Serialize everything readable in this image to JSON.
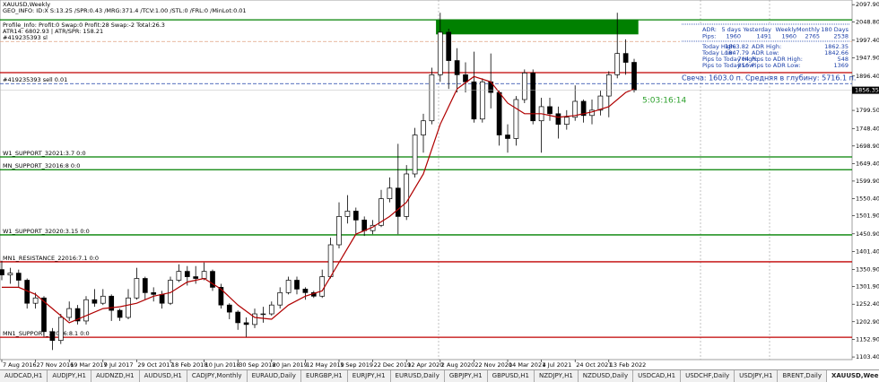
{
  "chart_data": {
    "type": "candlestick",
    "header": [
      "XAUUSD,Weekly",
      "GEO_INFO: ID:X S:13.25 /SPR:0.43 /MRG:371.4 /TCV:1.00 /STL:0 /FRL:0 /MinLot:0.01",
      "Profile_Info: Profit:0 Swap:0 Profit:28 Swap:-2 Total:26.3",
      "ATR14: 6802.93 | ATR/SPR: 158.21"
    ],
    "candle_color": "#000000",
    "x": [
      0,
      4,
      8,
      12,
      16,
      20,
      24,
      28,
      32,
      36,
      40,
      44,
      48,
      52,
      56,
      60,
      64,
      68,
      72,
      76,
      80,
      84,
      88,
      92,
      96,
      100,
      104,
      108,
      112,
      116,
      120,
      124,
      128,
      132,
      136,
      140,
      144,
      148,
      152,
      156,
      160,
      164,
      168,
      172,
      176,
      180,
      184,
      188,
      192,
      196,
      200,
      204,
      208,
      212,
      216,
      220,
      224,
      228,
      232,
      236,
      240,
      244,
      248,
      252,
      256,
      260,
      264,
      268,
      272,
      276,
      280,
      284,
      288,
      292,
      296,
      300
    ],
    "open": [
      1350,
      1335,
      1340,
      1320,
      1255,
      1270,
      1175,
      1150,
      1215,
      1240,
      1205,
      1265,
      1255,
      1275,
      1235,
      1215,
      1270,
      1325,
      1285,
      1280,
      1255,
      1320,
      1345,
      1330,
      1325,
      1345,
      1300,
      1250,
      1230,
      1200,
      1195,
      1225,
      1225,
      1250,
      1285,
      1320,
      1295,
      1285,
      1275,
      1330,
      1420,
      1500,
      1515,
      1490,
      1460,
      1475,
      1550,
      1580,
      1500,
      1620,
      1730,
      1770,
      1900,
      2020,
      1940,
      1900,
      1880,
      1775,
      1880,
      1850,
      1730,
      1720,
      1830,
      1905,
      1770,
      1810,
      1790,
      1760,
      1780,
      1825,
      1785,
      1800,
      1840,
      1900,
      1960,
      1935
    ],
    "high": [
      1375,
      1355,
      1350,
      1325,
      1285,
      1275,
      1185,
      1225,
      1260,
      1250,
      1275,
      1295,
      1295,
      1280,
      1240,
      1295,
      1355,
      1330,
      1300,
      1290,
      1330,
      1365,
      1360,
      1360,
      1370,
      1350,
      1310,
      1255,
      1235,
      1215,
      1240,
      1245,
      1260,
      1300,
      1330,
      1330,
      1300,
      1290,
      1350,
      1440,
      1540,
      1560,
      1525,
      1500,
      1490,
      1575,
      1610,
      1705,
      1645,
      1750,
      1790,
      1920,
      2075,
      2030,
      1975,
      1935,
      1965,
      1890,
      1960,
      1855,
      1760,
      1840,
      1915,
      1915,
      1835,
      1835,
      1810,
      1800,
      1870,
      1830,
      1830,
      1855,
      1910,
      2075,
      2000,
      1945
    ],
    "low": [
      1320,
      1310,
      1300,
      1240,
      1240,
      1160,
      1123,
      1140,
      1205,
      1195,
      1195,
      1245,
      1250,
      1205,
      1205,
      1210,
      1265,
      1265,
      1260,
      1240,
      1250,
      1315,
      1305,
      1310,
      1320,
      1290,
      1240,
      1210,
      1180,
      1160,
      1185,
      1200,
      1220,
      1240,
      1280,
      1280,
      1265,
      1270,
      1270,
      1325,
      1410,
      1480,
      1450,
      1445,
      1450,
      1470,
      1540,
      1450,
      1490,
      1610,
      1680,
      1760,
      1880,
      1860,
      1850,
      1850,
      1765,
      1765,
      1805,
      1700,
      1680,
      1700,
      1820,
      1760,
      1680,
      1770,
      1720,
      1745,
      1770,
      1765,
      1760,
      1785,
      1780,
      1890,
      1900,
      1850
    ],
    "close": [
      1335,
      1340,
      1320,
      1255,
      1270,
      1175,
      1150,
      1215,
      1240,
      1205,
      1265,
      1255,
      1275,
      1235,
      1215,
      1270,
      1325,
      1285,
      1280,
      1255,
      1320,
      1345,
      1330,
      1325,
      1345,
      1300,
      1250,
      1230,
      1200,
      1195,
      1225,
      1225,
      1250,
      1285,
      1320,
      1295,
      1285,
      1275,
      1330,
      1420,
      1500,
      1515,
      1490,
      1460,
      1475,
      1550,
      1580,
      1500,
      1620,
      1730,
      1770,
      1900,
      2020,
      1940,
      1900,
      1880,
      1775,
      1880,
      1850,
      1730,
      1720,
      1830,
      1905,
      1770,
      1810,
      1790,
      1760,
      1780,
      1825,
      1785,
      1800,
      1840,
      1900,
      1960,
      1935,
      1856.35
    ],
    "ma": {
      "color": "#b00000",
      "x": [
        0,
        8,
        16,
        24,
        32,
        40,
        48,
        56,
        64,
        72,
        80,
        88,
        96,
        104,
        112,
        120,
        128,
        136,
        144,
        152,
        160,
        168,
        176,
        184,
        192,
        200,
        208,
        216,
        224,
        232,
        240,
        248,
        256,
        264,
        272,
        280,
        288,
        296,
        300
      ],
      "values": [
        1300,
        1300,
        1280,
        1240,
        1200,
        1220,
        1240,
        1245,
        1255,
        1275,
        1285,
        1315,
        1325,
        1295,
        1250,
        1215,
        1210,
        1250,
        1275,
        1290,
        1370,
        1450,
        1470,
        1500,
        1540,
        1620,
        1760,
        1860,
        1895,
        1880,
        1820,
        1790,
        1790,
        1780,
        1785,
        1795,
        1810,
        1850,
        1860
      ]
    },
    "xlim": [
      -0.85,
      403.4
    ],
    "xticks": [
      {
        "value": 0,
        "label": "7 Aug 2016"
      },
      {
        "value": 16,
        "label": "27 Nov 2016"
      },
      {
        "value": 32,
        "label": "19 Mar 2017"
      },
      {
        "value": 48,
        "label": "9 Jul 2017"
      },
      {
        "value": 64,
        "label": "29 Oct 2017"
      },
      {
        "value": 80,
        "label": "18 Feb 2018"
      },
      {
        "value": 96,
        "label": "10 Jun 2018"
      },
      {
        "value": 112,
        "label": "30 Sep 2018"
      },
      {
        "value": 128,
        "label": "20 Jan 2019"
      },
      {
        "value": 144,
        "label": "12 May 2019"
      },
      {
        "value": 160,
        "label": "1 Sep 2019"
      },
      {
        "value": 176,
        "label": "22 Dec 2019"
      },
      {
        "value": 192,
        "label": "12 Apr 2020"
      },
      {
        "value": 208,
        "label": "2 Aug 2020"
      },
      {
        "value": 224,
        "label": "22 Nov 2020"
      },
      {
        "value": 240,
        "label": "14 Mar 2021"
      },
      {
        "value": 256,
        "label": "4 Jul 2021"
      },
      {
        "value": 272,
        "label": "24 Oct 2021"
      },
      {
        "value": 288,
        "label": "13 Feb 2022"
      }
    ],
    "ylim": [
      1096,
      2111
    ],
    "yticks": [
      {
        "value": 2097.9,
        "label": "2097.90"
      },
      {
        "value": 2048.8,
        "label": "2048.80"
      },
      {
        "value": 1997.4,
        "label": "1997.40"
      },
      {
        "value": 1947.9,
        "label": "1947.90"
      },
      {
        "value": 1896.4,
        "label": "1896.40"
      },
      {
        "value": 1799.5,
        "label": "1799.50"
      },
      {
        "value": 1748.4,
        "label": "1748.40"
      },
      {
        "value": 1698.9,
        "label": "1698.90"
      },
      {
        "value": 1649.4,
        "label": "1649.40"
      },
      {
        "value": 1599.9,
        "label": "1599.90"
      },
      {
        "value": 1550.4,
        "label": "1550.40"
      },
      {
        "value": 1501.9,
        "label": "1501.90"
      },
      {
        "value": 1450.9,
        "label": "1450.90"
      },
      {
        "value": 1401.4,
        "label": "1401.40"
      },
      {
        "value": 1350.9,
        "label": "1350.90"
      },
      {
        "value": 1301.9,
        "label": "1301.90"
      },
      {
        "value": 1252.4,
        "label": "1252.40"
      },
      {
        "value": 1202.9,
        "label": "1202.90"
      },
      {
        "value": 1152.9,
        "label": "1152.90"
      },
      {
        "value": 1103.4,
        "label": "1103.40"
      }
    ],
    "current_price": 1856.35,
    "zone": {
      "x0": 206,
      "x1": 302,
      "top": 2055,
      "bottom": 2014,
      "color": "#008000"
    },
    "levels": [
      {
        "value": 2055,
        "color": "#008000"
      },
      {
        "value": 1994,
        "color": "#e0a080",
        "dash": true,
        "label": "#419235393 sl"
      },
      {
        "value": 1906,
        "color": "#c00000"
      },
      {
        "value": 1875,
        "color": "#1a3ea8",
        "dash": true,
        "label": "#419235393 sell 0.01"
      },
      {
        "value": 1668,
        "color": "#008000",
        "label": "W1_SUPPORT_32021:3.7 0:0"
      },
      {
        "value": 1632,
        "color": "#008000",
        "label": "MN_SUPPORT_32016:8 0:0"
      },
      {
        "value": 1448,
        "color": "#008000",
        "label": "W1_SUPPORT_32020:3.15 0:0"
      },
      {
        "value": 1372,
        "color": "#c00000",
        "label": "MN1_RESISTANCE_22016:7.1 0:0"
      },
      {
        "value": 1159,
        "color": "#c00000",
        "label": "MN1_SUPPORT_12016:8.1 0:0"
      }
    ],
    "adr": {
      "header": [
        "ADR:",
        "5 days",
        "Yesterday",
        "Weekly",
        "Monthly",
        "180 Days"
      ],
      "row": [
        "Pips:",
        1960,
        1491,
        1960,
        2765,
        2538
      ]
    },
    "stats": [
      [
        "Today High:",
        1863.82,
        "ADR High:",
        1862.35
      ],
      [
        "Today Low:",
        1847.79,
        "ADR Low:",
        1842.66
      ],
      [
        "Pips to Today High:",
        704,
        "Pips to ADR High:",
        548
      ],
      [
        "Pips to Today Low:",
        856,
        "Pips to ADR Low:",
        1369
      ]
    ],
    "candle_info": "Свеча: 1603.0 п. Средняя в глубину: 5716.1 п.",
    "timer": "5:03:16:14",
    "tabs": [
      {
        "label": "AUDCAD,H1"
      },
      {
        "label": "AUDJPY,H1"
      },
      {
        "label": "AUDNZD,H1"
      },
      {
        "label": "AUDUSD,H1"
      },
      {
        "label": "CADJPY,Monthly"
      },
      {
        "label": "EURAUD,Daily"
      },
      {
        "label": "EURGBP,H1"
      },
      {
        "label": "EURJPY,H1"
      },
      {
        "label": "EURUSD,Daily"
      },
      {
        "label": "GBPJPY,H1"
      },
      {
        "label": "GBPUSD,H1"
      },
      {
        "label": "NZDJPY,H1"
      },
      {
        "label": "NZDUSD,Daily"
      },
      {
        "label": "USDCAD,H1"
      },
      {
        "label": "USDCHF,Daily"
      },
      {
        "label": "USDJPY,H1"
      },
      {
        "label": "BRENT,Daily"
      },
      {
        "label": "XAUUSD,Weekly",
        "active": true
      }
    ]
  }
}
